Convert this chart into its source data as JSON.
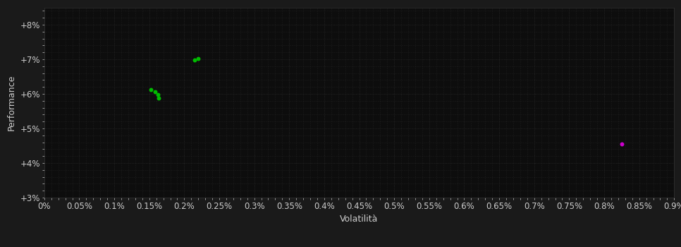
{
  "background_color": "#1a1a1a",
  "plot_bg_color": "#0d0d0d",
  "grid_color": "#2a2a2a",
  "text_color": "#cccccc",
  "xlabel": "Volatilità",
  "ylabel": "Performance",
  "xlim": [
    0.0,
    0.009
  ],
  "ylim": [
    0.03,
    0.085
  ],
  "yticks": [
    0.03,
    0.04,
    0.05,
    0.06,
    0.07,
    0.08
  ],
  "ytick_labels": [
    "+3%",
    "+4%",
    "+5%",
    "+6%",
    "+7%",
    "+8%"
  ],
  "xticks": [
    0.0,
    0.0005,
    0.001,
    0.0015,
    0.002,
    0.0025,
    0.003,
    0.0035,
    0.004,
    0.0045,
    0.005,
    0.0055,
    0.006,
    0.0065,
    0.007,
    0.0075,
    0.008,
    0.0085,
    0.009
  ],
  "xtick_labels": [
    "0%",
    "0.05%",
    "0.1%",
    "0.15%",
    "0.2%",
    "0.25%",
    "0.3%",
    "0.35%",
    "0.4%",
    "0.45%",
    "0.5%",
    "0.55%",
    "0.6%",
    "0.65%",
    "0.7%",
    "0.75%",
    "0.8%",
    "0.85%",
    "0.9%"
  ],
  "minor_xtick_count": 4,
  "minor_ytick_count": 4,
  "green_points": [
    [
      0.00215,
      0.0698
    ],
    [
      0.0022,
      0.0702
    ],
    [
      0.00152,
      0.0613
    ],
    [
      0.00158,
      0.0606
    ],
    [
      0.00162,
      0.0598
    ],
    [
      0.00163,
      0.0588
    ]
  ],
  "magenta_points": [
    [
      0.00825,
      0.0455
    ]
  ],
  "green_color": "#00bb00",
  "magenta_color": "#cc00cc",
  "marker_size": 18,
  "font_size": 8.5,
  "label_fontsize": 9
}
